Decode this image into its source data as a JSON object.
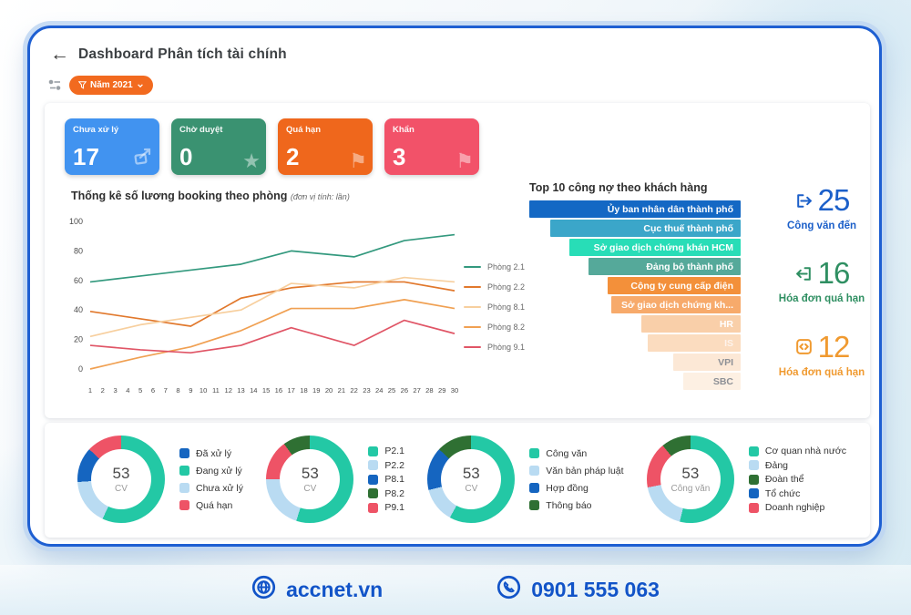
{
  "header": {
    "title": "Dashboard Phân tích tài chính"
  },
  "filter": {
    "label": "Năm 2021"
  },
  "stat_cards": [
    {
      "label": "Chưa xử lý",
      "value": "17",
      "color": "#4193f0",
      "icon": "send-icon"
    },
    {
      "label": "Chờ duyệt",
      "value": "0",
      "color": "#3a9271",
      "icon": "star-icon"
    },
    {
      "label": "Quá hạn",
      "value": "2",
      "color": "#ef671c",
      "icon": "flag-icon"
    },
    {
      "label": "Khẩn",
      "value": "3",
      "color": "#f25269",
      "icon": "flag-icon"
    }
  ],
  "chart_data": [
    {
      "type": "line",
      "title": "Thống kê số lương booking theo phòng",
      "subtitle": "(đơn vị tính: lần)",
      "x": [
        1,
        5,
        9,
        13,
        17,
        22,
        26,
        30
      ],
      "x_axis_range": [
        1,
        30
      ],
      "ylim": [
        0,
        100
      ],
      "y_ticks": [
        0,
        20,
        40,
        60,
        80,
        100
      ],
      "grid": false,
      "legend_position": "right",
      "series": [
        {
          "name": "Phòng 2.1",
          "color": "#33997e",
          "values": [
            59,
            63,
            67,
            71,
            80,
            76,
            87,
            91
          ]
        },
        {
          "name": "Phòng 2.2",
          "color": "#e1782c",
          "values": [
            39,
            34,
            29,
            48,
            55,
            59,
            59,
            53
          ]
        },
        {
          "name": "Phòng 8.1",
          "color": "#f7cf9e",
          "values": [
            22,
            30,
            35,
            40,
            58,
            55,
            62,
            59
          ]
        },
        {
          "name": "Phòng 8.2",
          "color": "#f0a052",
          "values": [
            0,
            8,
            15,
            26,
            41,
            41,
            47,
            41
          ]
        },
        {
          "name": "Phòng 9.1",
          "color": "#e05566",
          "values": [
            16,
            13,
            11,
            16,
            28,
            16,
            33,
            24
          ]
        }
      ]
    },
    {
      "type": "bar",
      "title": "Top 10 công nợ theo khách hàng",
      "orientation": "horizontal",
      "note": "no numeric axis shown; values are relative bar lengths in %",
      "bars": [
        {
          "label": "Ủy ban nhân dân thành phố",
          "value": 100,
          "color": "#1468c4",
          "label_color": "#ffffff"
        },
        {
          "label": "Cục thuế thành phố",
          "value": 90,
          "color": "#3ba6c9",
          "label_color": "#ffffff"
        },
        {
          "label": "Sở giao dịch chứng khán HCM",
          "value": 81,
          "color": "#28ddb7",
          "label_color": "#ffffff"
        },
        {
          "label": "Đảng bộ thành phố",
          "value": 72,
          "color": "#55a99a",
          "label_color": "#ffffff"
        },
        {
          "label": "Cộng ty cung cấp điện",
          "value": 63,
          "color": "#f3903a",
          "label_color": "#ffffff"
        },
        {
          "label": "Sở giao dịch chứng kh...",
          "value": 61,
          "color": "#f7aa6b",
          "label_color": "#ffffff"
        },
        {
          "label": "HR",
          "value": 47,
          "color": "#f9cfa9",
          "label_color": "#ffffff"
        },
        {
          "label": "IS",
          "value": 44,
          "color": "#fbdcbf",
          "label_color": "#fdf3ec"
        },
        {
          "label": "VPI",
          "value": 32,
          "color": "#fce8d6",
          "label_color": "#8d9096"
        },
        {
          "label": "SBC",
          "value": 27,
          "color": "#fdf0e3",
          "label_color": "#8d9096"
        }
      ]
    },
    {
      "type": "pie",
      "center_value": "53",
      "center_label": "CV",
      "slices": [
        {
          "label": "Đã xử lý",
          "color": "#1565c0",
          "pct": 13
        },
        {
          "label": "Đang xử lý",
          "color": "#23c8a5",
          "pct": 57
        },
        {
          "label": "Chưa xử lý",
          "color": "#b9dbf2",
          "pct": 17
        },
        {
          "label": "Quá hạn",
          "color": "#ee5366",
          "pct": 13
        }
      ],
      "ring_order": [
        1,
        2,
        0,
        3
      ]
    },
    {
      "type": "pie",
      "center_value": "53",
      "center_label": "CV",
      "slices": [
        {
          "label": "P2.1",
          "color": "#23c8a5",
          "pct": 55
        },
        {
          "label": "P2.2",
          "color": "#b9dbf2",
          "pct": 20
        },
        {
          "label": "P8.1",
          "color": "#1565c0",
          "pct": 0
        },
        {
          "label": "P8.2",
          "color": "#2f7033",
          "pct": 10
        },
        {
          "label": "P9.1",
          "color": "#ee5366",
          "pct": 15
        }
      ],
      "ring_order": [
        0,
        1,
        4,
        3
      ]
    },
    {
      "type": "pie",
      "center_value": "53",
      "center_label": "CV",
      "slices": [
        {
          "label": "Công văn",
          "color": "#23c8a5",
          "pct": 58
        },
        {
          "label": "Văn bản pháp luật",
          "color": "#b9dbf2",
          "pct": 13
        },
        {
          "label": "Hợp đồng",
          "color": "#1565c0",
          "pct": 16
        },
        {
          "label": "Thông báo",
          "color": "#2f7033",
          "pct": 13
        }
      ],
      "ring_order": [
        0,
        1,
        2,
        3
      ]
    },
    {
      "type": "pie",
      "center_value": "53",
      "center_label": "Công văn",
      "slices": [
        {
          "label": "Cơ quan nhà nước",
          "color": "#23c8a5",
          "pct": 54
        },
        {
          "label": "Đảng",
          "color": "#b9dbf2",
          "pct": 18
        },
        {
          "label": "Đoàn thể",
          "color": "#2f7033",
          "pct": 11
        },
        {
          "label": "Tổ chức",
          "color": "#1565c0",
          "pct": 0
        },
        {
          "label": "Doanh nghiệp",
          "color": "#ee5366",
          "pct": 17
        }
      ],
      "ring_order": [
        0,
        1,
        4,
        2
      ]
    }
  ],
  "right_stats": [
    {
      "value": "25",
      "label": "Công văn đến",
      "color": "#1b5fc9",
      "icon": "document-out-icon"
    },
    {
      "value": "16",
      "label": "Hóa đơn quá hạn",
      "color": "#2f8f62",
      "icon": "document-in-icon"
    },
    {
      "value": "12",
      "label": "Hóa đơn quá hạn",
      "color": "#f09a30",
      "icon": "invoice-code-icon"
    }
  ],
  "footer": {
    "website": "accnet.vn",
    "phone": "0901 555 063"
  }
}
